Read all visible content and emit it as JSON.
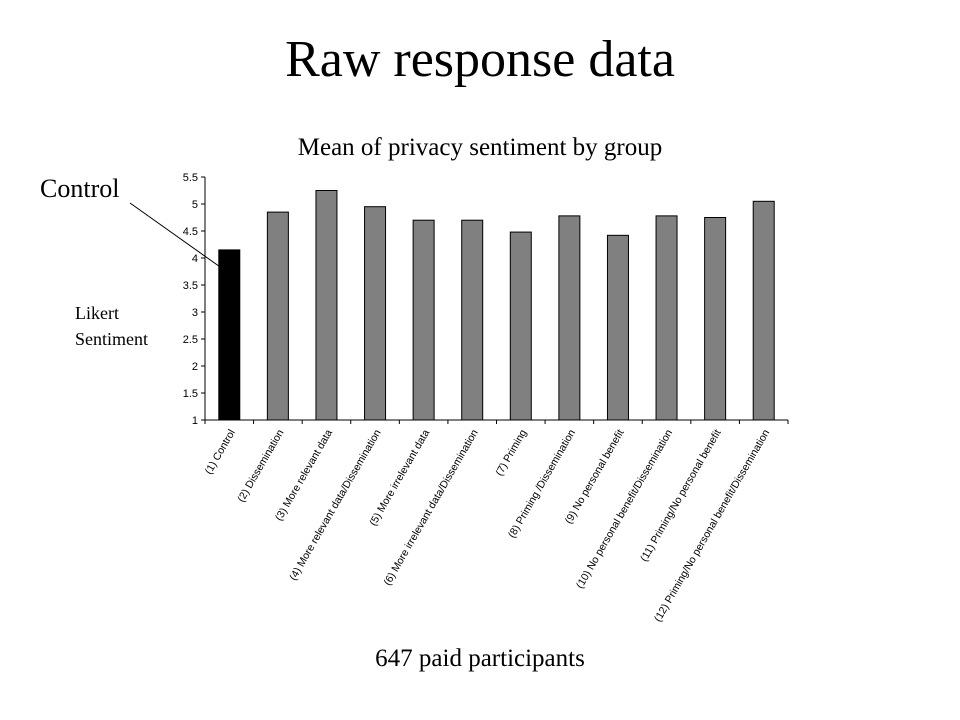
{
  "slide": {
    "title": "Raw response data",
    "footer": "647 paid participants",
    "callout": "Control"
  },
  "chart_data": {
    "type": "bar",
    "title": "Mean of privacy sentiment by group",
    "ylabel_lines": [
      "Likert",
      "Sentiment"
    ],
    "xlabel": "",
    "ylim": [
      1,
      5.5
    ],
    "yticks": [
      "1",
      "1.5",
      "2",
      "2.5",
      "3",
      "3.5",
      "4",
      "4.5",
      "5",
      "5.5"
    ],
    "categories": [
      "(1) Control",
      "(2) Dissemination",
      "(3) More relevant data",
      "(4) More relevant data/Dissemination",
      "(5) More irrelevant data",
      "(6) More irrelevant data/Dissemination",
      "(7) Priming",
      "(8) Priming /Dissemination",
      "(9) No personal benefit",
      "(10) No personal benefit/Dissemination",
      "(11) Priming/No personal benefit",
      "(12) Priming/No personal benefit/Dissemination"
    ],
    "values": [
      4.15,
      4.85,
      5.25,
      4.95,
      4.7,
      4.7,
      4.48,
      4.78,
      4.42,
      4.78,
      4.75,
      5.05
    ],
    "colors": {
      "highlight": "#000000",
      "bar": "#808080",
      "bar_stroke": "#000000"
    },
    "highlight_index": 0,
    "grid": false,
    "legend": "none"
  }
}
